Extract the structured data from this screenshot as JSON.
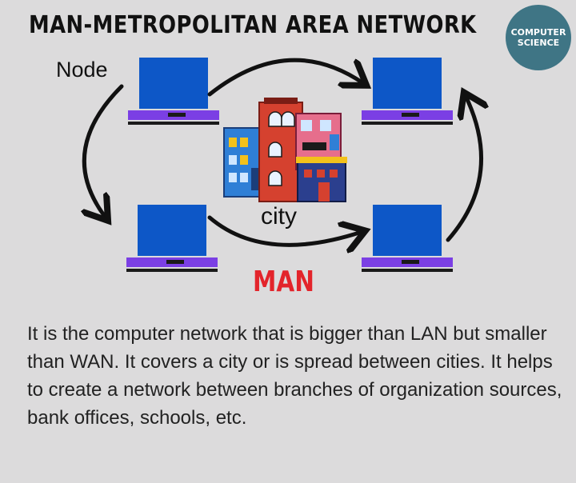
{
  "title": "MAN-METROPOLITAN AREA NETWORK",
  "badge": {
    "line1": "COMPUTER",
    "line2": "SCIENCE"
  },
  "labels": {
    "node": "Node",
    "city": "city",
    "man": "MAN"
  },
  "description": "It is the computer network that is bigger than LAN but smaller than WAN. It covers a city or is spread between cities. It helps to create a network between branches of organization sources, bank offices, schools, etc.",
  "colors": {
    "background": "#dcdbdc",
    "screen": "#0d57c7",
    "keyboard": "#7b3fe4",
    "man_text": "#e3242b",
    "badge": "#3f7585"
  },
  "icons": [
    "laptop-icon",
    "city-buildings-icon",
    "arrow-icon"
  ]
}
